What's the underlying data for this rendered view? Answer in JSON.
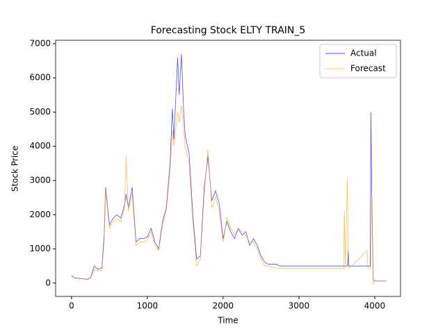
{
  "chart_data": {
    "type": "line",
    "title": "Forecasting Stock ELTY TRAIN_5",
    "x_label": "Time",
    "y_label": "Stock Price",
    "x": [
      0,
      50,
      100,
      150,
      200,
      250,
      300,
      350,
      400,
      430,
      450,
      500,
      550,
      600,
      650,
      700,
      720,
      750,
      800,
      850,
      900,
      950,
      1000,
      1050,
      1100,
      1150,
      1200,
      1250,
      1300,
      1330,
      1350,
      1400,
      1420,
      1450,
      1480,
      1500,
      1550,
      1600,
      1650,
      1700,
      1750,
      1800,
      1850,
      1900,
      1950,
      2000,
      2050,
      2100,
      2150,
      2200,
      2250,
      2300,
      2350,
      2400,
      2450,
      2500,
      2550,
      2600,
      2650,
      2700,
      2750,
      3000,
      3500,
      3590,
      3600,
      3610,
      3640,
      3650,
      3660,
      3900,
      3910,
      3940,
      3950,
      3960,
      3980,
      4000,
      4150
    ],
    "series": [
      {
        "name": "Actual",
        "color": "#0000ff",
        "values": [
          220,
          150,
          140,
          130,
          110,
          150,
          500,
          400,
          450,
          1400,
          2800,
          1700,
          1900,
          2000,
          1900,
          2300,
          2600,
          2200,
          2800,
          1200,
          1300,
          1300,
          1350,
          1600,
          1200,
          1000,
          1800,
          2200,
          3500,
          5100,
          4200,
          6600,
          5500,
          6700,
          5000,
          4300,
          3800,
          2000,
          700,
          800,
          2800,
          3700,
          2400,
          2700,
          2300,
          1300,
          1800,
          1500,
          1300,
          1600,
          1400,
          1500,
          1100,
          1300,
          1100,
          800,
          600,
          550,
          550,
          550,
          500,
          500,
          500,
          500,
          500,
          500,
          500,
          950,
          500,
          500,
          500,
          500,
          5000,
          2700,
          100,
          60,
          60
        ]
      },
      {
        "name": "Forecast",
        "color": "#ffa500",
        "values": [
          200,
          140,
          130,
          120,
          100,
          140,
          400,
          350,
          380,
          1200,
          2700,
          1600,
          1800,
          1900,
          1800,
          2200,
          3700,
          2100,
          2600,
          1100,
          1200,
          1200,
          1250,
          1500,
          1100,
          950,
          1700,
          2100,
          3300,
          4500,
          4000,
          5000,
          4700,
          5200,
          4500,
          4000,
          3500,
          1800,
          500,
          700,
          2600,
          3900,
          2200,
          2500,
          2100,
          1200,
          1900,
          1600,
          1400,
          1600,
          1500,
          1400,
          1200,
          1200,
          1000,
          700,
          500,
          500,
          450,
          450,
          430,
          430,
          430,
          430,
          2100,
          430,
          3050,
          500,
          430,
          950,
          430,
          430,
          430,
          2600,
          -40,
          60,
          60
        ]
      }
    ],
    "xlim": [
      -210,
      4340
    ],
    "ylim": [
      -390,
      7100
    ],
    "xticks": [
      0,
      1000,
      2000,
      3000,
      4000
    ],
    "yticks": [
      0,
      1000,
      2000,
      3000,
      4000,
      5000,
      6000,
      7000
    ],
    "legend": "upper right"
  }
}
